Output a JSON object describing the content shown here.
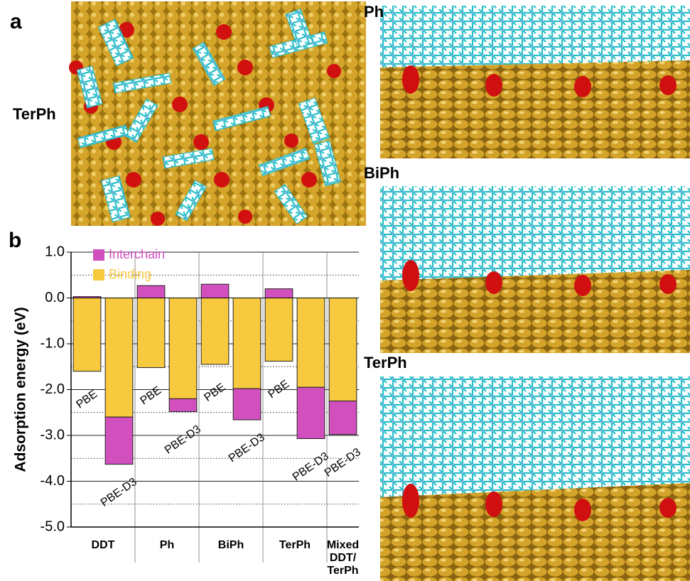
{
  "figure": {
    "panel_a": "a",
    "panel_a_image": "TerPh",
    "panel_b": "b",
    "side_images": [
      "Ph",
      "BiPh",
      "TerPh"
    ]
  },
  "chart_data": {
    "type": "bar",
    "stacked": true,
    "ylabel": "Adsorption energy (eV)",
    "ylim": [
      -5,
      1
    ],
    "yticks": [
      {
        "value": 1,
        "label": "1.0"
      },
      {
        "value": 0,
        "label": "0.0"
      },
      {
        "value": -1,
        "label": "-1.0"
      },
      {
        "value": -2,
        "label": "-2.0"
      },
      {
        "value": -3,
        "label": "-3.0"
      },
      {
        "value": -4,
        "label": "-4.0"
      },
      {
        "value": -5,
        "label": "-5.0"
      }
    ],
    "minor_yticks": [
      0.5,
      -0.5,
      -1.5,
      -2.5,
      -3.5,
      -4.5
    ],
    "grid": true,
    "legend": "upper left",
    "series": [
      {
        "name": "Interchain",
        "color": "#d24fbe"
      },
      {
        "name": "Binding",
        "color": "#f6c93e"
      }
    ],
    "groups": [
      {
        "name": "DDT",
        "bars": [
          {
            "label": "PBE",
            "values": [
              0.03,
              -1.6
            ]
          },
          {
            "label": "PBE-D3",
            "values": [
              -1.03,
              -2.6
            ]
          }
        ]
      },
      {
        "name": "Ph",
        "bars": [
          {
            "label": "PBE",
            "values": [
              0.27,
              -1.52
            ]
          },
          {
            "label": "PBE-D3",
            "values": [
              -0.28,
              -2.2
            ]
          }
        ]
      },
      {
        "name": "BiPh",
        "bars": [
          {
            "label": "PBE",
            "values": [
              0.3,
              -1.45
            ]
          },
          {
            "label": "PBE-D3",
            "values": [
              -0.68,
              -1.98
            ]
          }
        ]
      },
      {
        "name": "TerPh",
        "bars": [
          {
            "label": "PBE",
            "values": [
              0.2,
              -1.38
            ]
          },
          {
            "label": "PBE-D3",
            "values": [
              -1.12,
              -1.95
            ]
          }
        ]
      },
      {
        "name": "Mixed DDT/ TerPh",
        "bars": [
          {
            "label": "PBE-D3",
            "values": [
              -0.73,
              -2.25
            ]
          }
        ]
      }
    ]
  }
}
